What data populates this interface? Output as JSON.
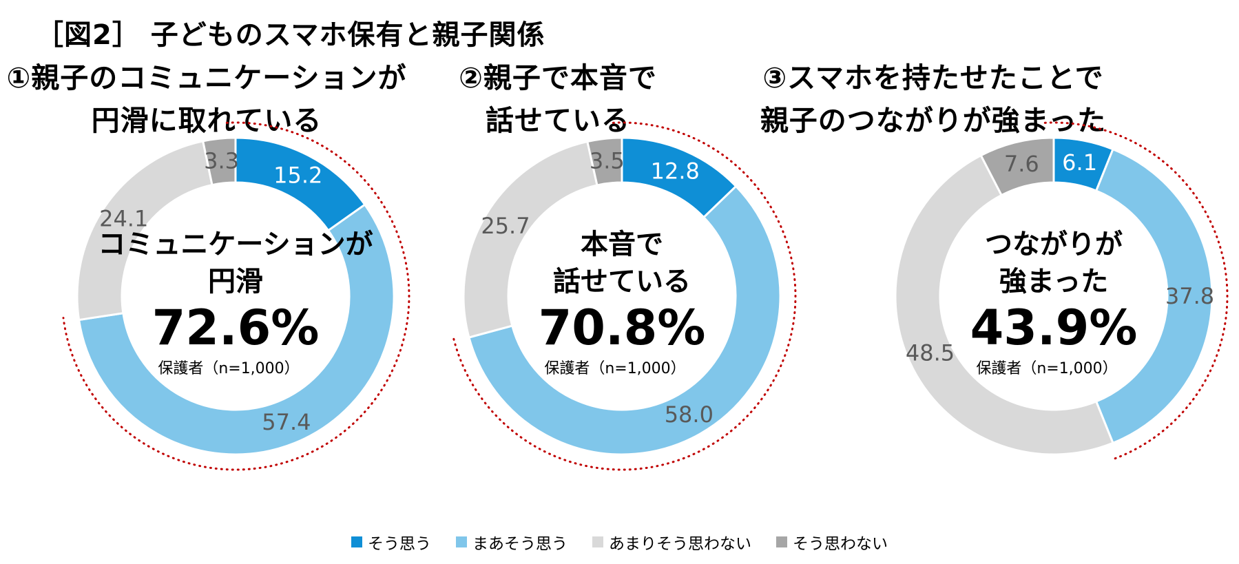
{
  "figure_title": "［図2］ 子どものスマホ保有と親子関係",
  "legend": [
    {
      "label": "そう思う",
      "color": "#0f8fd6"
    },
    {
      "label": "まあそう思う",
      "color": "#80c6ea"
    },
    {
      "label": "あまりそう思わない",
      "color": "#d9d9d9"
    },
    {
      "label": "そう思わない",
      "color": "#a6a6a6"
    }
  ],
  "chart_data": [
    {
      "type": "pie",
      "title": [
        "①親子のコミュニケーションが",
        "円滑に取れている"
      ],
      "categories": [
        "そう思う",
        "まあそう思う",
        "あまりそう思わない",
        "そう思わない"
      ],
      "values": [
        15.2,
        57.4,
        24.1,
        3.3
      ],
      "center_label": [
        "コミュニケーションが",
        "円滑"
      ],
      "center_value": "72.6%",
      "center_note": "保護者（n=1,000）",
      "highlight_total": 72.6
    },
    {
      "type": "pie",
      "title": [
        "②親子で本音で",
        "話せている"
      ],
      "categories": [
        "そう思う",
        "まあそう思う",
        "あまりそう思わない",
        "そう思わない"
      ],
      "values": [
        12.8,
        58.0,
        25.7,
        3.5
      ],
      "center_label": [
        "本音で",
        "話せている"
      ],
      "center_value": "70.8%",
      "center_note": "保護者（n=1,000）",
      "highlight_total": 70.8
    },
    {
      "type": "pie",
      "title": [
        "③スマホを持たせたことで",
        "親子のつながりが強まった"
      ],
      "categories": [
        "そう思う",
        "まあそう思う",
        "あまりそう思わない",
        "そう思わない"
      ],
      "values": [
        6.1,
        37.8,
        48.5,
        7.6
      ],
      "center_label": [
        "つながりが",
        "強まった"
      ],
      "center_value": "43.9%",
      "center_note": "保護者（n=1,000）",
      "highlight_total": 43.9
    }
  ]
}
